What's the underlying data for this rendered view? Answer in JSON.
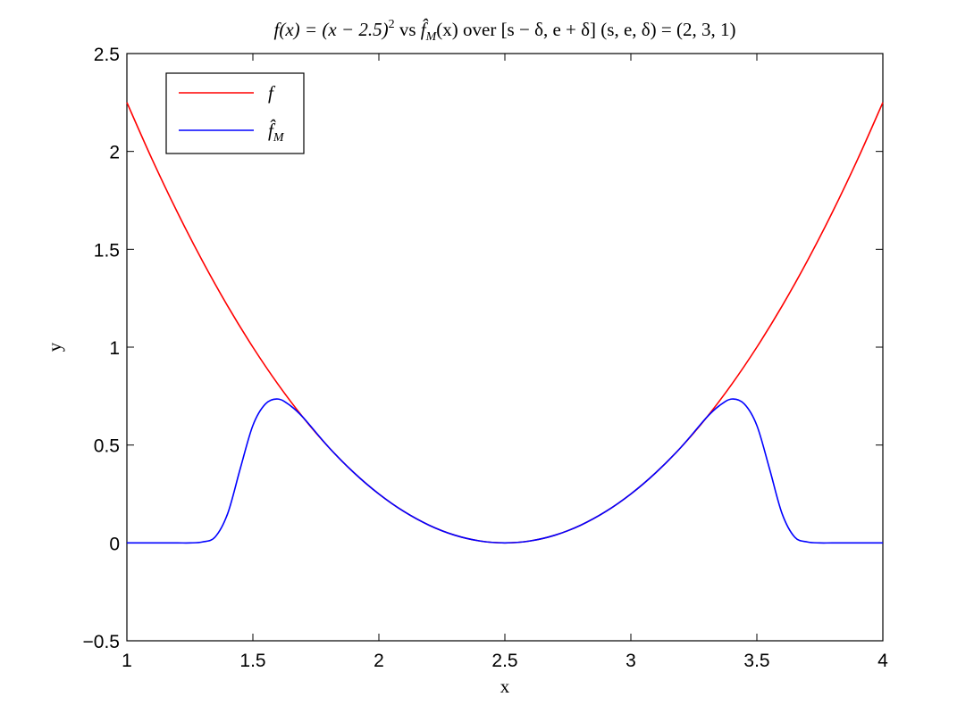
{
  "chart_data": {
    "type": "line",
    "title_parts": {
      "f_def": "f(x) = (x − 2.5)",
      "f_exp": "2",
      "vs": " vs ",
      "fhat": "f̂",
      "fhat_sub": "M",
      "fhat_arg": "(x) over [s − δ, e + δ] (s, e, δ) = (2, 3, 1)"
    },
    "xlabel": "x",
    "ylabel": "y",
    "xlim": [
      1,
      4
    ],
    "ylim": [
      -0.5,
      2.5
    ],
    "xticks": [
      1,
      1.5,
      2,
      2.5,
      3,
      3.5,
      4
    ],
    "yticks": [
      -0.5,
      0,
      0.5,
      1,
      1.5,
      2,
      2.5
    ],
    "xtick_labels": [
      "1",
      "1.5",
      "2",
      "2.5",
      "3",
      "3.5",
      "4"
    ],
    "ytick_labels": [
      "−0.5",
      "0",
      "0.5",
      "1",
      "1.5",
      "2",
      "2.5"
    ],
    "grid": false,
    "legend_position": "top-left",
    "legend": {
      "f": "f",
      "fhat": "f̂",
      "fhat_sub": "M"
    },
    "series": [
      {
        "name": "f",
        "color": "#ff0000",
        "x": [
          1.0,
          1.1,
          1.2,
          1.3,
          1.4,
          1.5,
          1.6,
          1.7,
          1.8,
          1.9,
          2.0,
          2.1,
          2.2,
          2.3,
          2.4,
          2.5,
          2.6,
          2.7,
          2.8,
          2.9,
          3.0,
          3.1,
          3.2,
          3.3,
          3.4,
          3.5,
          3.6,
          3.7,
          3.8,
          3.9,
          4.0
        ],
        "y": [
          2.25,
          1.96,
          1.69,
          1.44,
          1.21,
          1.0,
          0.81,
          0.64,
          0.49,
          0.36,
          0.25,
          0.16,
          0.09,
          0.04,
          0.01,
          0.0,
          0.01,
          0.04,
          0.09,
          0.16,
          0.25,
          0.36,
          0.49,
          0.64,
          0.81,
          1.0,
          1.21,
          1.44,
          1.69,
          1.96,
          2.25
        ]
      },
      {
        "name": "f̂_M",
        "color": "#0000ff",
        "x": [
          1.0,
          1.1,
          1.2,
          1.25,
          1.3,
          1.35,
          1.4,
          1.45,
          1.5,
          1.55,
          1.6,
          1.65,
          1.7,
          1.8,
          1.9,
          2.0,
          2.1,
          2.2,
          2.3,
          2.4,
          2.5,
          2.6,
          2.7,
          2.8,
          2.9,
          3.0,
          3.1,
          3.2,
          3.3,
          3.35,
          3.4,
          3.45,
          3.5,
          3.55,
          3.6,
          3.65,
          3.7,
          3.75,
          3.8,
          3.9,
          4.0
        ],
        "y": [
          0.0,
          0.0,
          0.0,
          0.0,
          0.005,
          0.03,
          0.15,
          0.38,
          0.6,
          0.71,
          0.735,
          0.7,
          0.64,
          0.49,
          0.36,
          0.25,
          0.16,
          0.09,
          0.04,
          0.01,
          0.0,
          0.01,
          0.04,
          0.09,
          0.16,
          0.25,
          0.36,
          0.49,
          0.64,
          0.7,
          0.735,
          0.71,
          0.6,
          0.38,
          0.15,
          0.03,
          0.005,
          0.0,
          0.0,
          0.0,
          0.0
        ]
      }
    ]
  }
}
